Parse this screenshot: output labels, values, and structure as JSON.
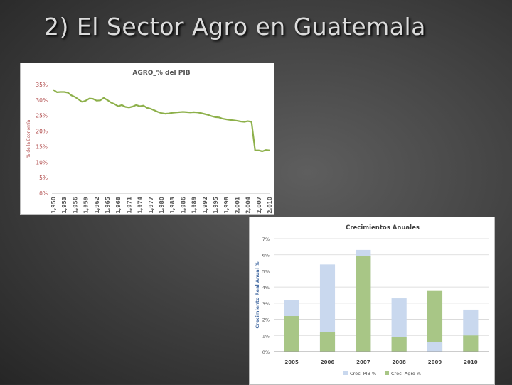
{
  "slide": {
    "title": "2) El Sector Agro en Guatemala"
  },
  "chart_data": [
    {
      "type": "line",
      "title": "AGRO_% del PIB",
      "ylabel": "% de la Economía",
      "xlabel": "",
      "ylim": [
        0,
        35
      ],
      "y_ticks": [
        "35%",
        "30%",
        "25%",
        "20%",
        "15%",
        "10%",
        "5%",
        "0%"
      ],
      "x_tick_labels": [
        "1,950",
        "1,953",
        "1,956",
        "1,959",
        "1,962",
        "1,965",
        "1,968",
        "1,971",
        "1,974",
        "1,977",
        "1,980",
        "1,983",
        "1,986",
        "1,989",
        "1,992",
        "1,995",
        "1,998",
        "2,001",
        "2,004",
        "2,007",
        "2,010"
      ],
      "grid": false,
      "legend": "none",
      "colors": {
        "line": "#8db04a",
        "axis_text": "#b04a4a",
        "title": "#555555"
      },
      "series": [
        {
          "x": [
            1950,
            1951,
            1952,
            1953,
            1954,
            1955,
            1956,
            1957,
            1958,
            1959,
            1960,
            1961,
            1962,
            1963,
            1964,
            1965,
            1966,
            1967,
            1968,
            1969,
            1970,
            1971,
            1972,
            1973,
            1974,
            1975,
            1976,
            1977,
            1978,
            1979,
            1980,
            1981,
            1982,
            1983,
            1984,
            1985,
            1986,
            1987,
            1988,
            1989,
            1990,
            1991,
            1992,
            1993,
            1994,
            1995,
            1996,
            1997,
            1998,
            1999,
            2000,
            2001,
            2002,
            2003,
            2004,
            2005,
            2006,
            2007,
            2008,
            2009,
            2010
          ],
          "y": [
            33.3,
            32.5,
            32.6,
            32.6,
            32.4,
            31.5,
            31.0,
            30.2,
            29.4,
            29.8,
            30.5,
            30.4,
            29.8,
            29.9,
            30.7,
            30.0,
            29.2,
            28.7,
            28.0,
            28.4,
            27.8,
            27.6,
            27.9,
            28.4,
            28.0,
            28.2,
            27.5,
            27.2,
            26.7,
            26.2,
            25.8,
            25.6,
            25.7,
            25.9,
            26.0,
            26.1,
            26.2,
            26.1,
            26.0,
            26.1,
            26.0,
            25.8,
            25.5,
            25.2,
            24.8,
            24.5,
            24.4,
            24.0,
            23.8,
            23.6,
            23.5,
            23.3,
            23.1,
            23.0,
            23.2,
            23.0,
            13.8,
            13.8,
            13.5,
            13.9,
            13.8
          ]
        }
      ]
    },
    {
      "type": "bar",
      "title": "Crecimientos Anuales",
      "ylabel": "Crecimiento Real Anual %",
      "xlabel": "",
      "ylim": [
        0,
        7
      ],
      "y_ticks": [
        "7%",
        "6%",
        "5%",
        "4%",
        "3%",
        "2%",
        "1%",
        "0%"
      ],
      "categories": [
        "2005",
        "2006",
        "2007",
        "2008",
        "2009",
        "2010"
      ],
      "grid": true,
      "legend": "bottom",
      "layout": "overlapped",
      "series": [
        {
          "name": "Crec. PIB %",
          "values": [
            3.2,
            5.4,
            6.3,
            3.3,
            0.6,
            2.6
          ],
          "color": "#c9d8ee"
        },
        {
          "name": "Crec. Agro %",
          "values": [
            2.2,
            1.2,
            5.9,
            0.9,
            3.8,
            1.0
          ],
          "color": "#a8c686"
        }
      ]
    }
  ]
}
